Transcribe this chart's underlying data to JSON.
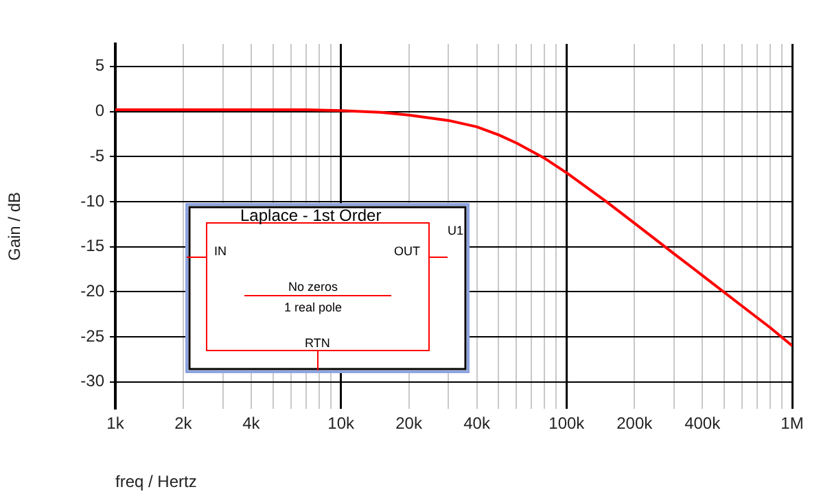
{
  "chart_data": {
    "type": "line",
    "xlabel": "freq / Hertz",
    "ylabel": "Gain / dB",
    "log": "x",
    "grid": true,
    "legend": false,
    "marker": "none",
    "line_style": "solid",
    "xlim": [
      1000,
      1000000
    ],
    "ylim": [
      -33,
      7.5
    ],
    "xticks": [
      {
        "value": 1000,
        "label": "1k"
      },
      {
        "value": 2000,
        "label": "2k"
      },
      {
        "value": 3000,
        "label": null
      },
      {
        "value": 4000,
        "label": "4k"
      },
      {
        "value": 5000,
        "label": null
      },
      {
        "value": 6000,
        "label": null
      },
      {
        "value": 7000,
        "label": null
      },
      {
        "value": 8000,
        "label": null
      },
      {
        "value": 9000,
        "label": null
      },
      {
        "value": 10000,
        "label": "10k"
      },
      {
        "value": 20000,
        "label": "20k"
      },
      {
        "value": 30000,
        "label": null
      },
      {
        "value": 40000,
        "label": "40k"
      },
      {
        "value": 50000,
        "label": null
      },
      {
        "value": 60000,
        "label": null
      },
      {
        "value": 70000,
        "label": null
      },
      {
        "value": 80000,
        "label": null
      },
      {
        "value": 90000,
        "label": null
      },
      {
        "value": 100000,
        "label": "100k"
      },
      {
        "value": 200000,
        "label": "200k"
      },
      {
        "value": 300000,
        "label": null
      },
      {
        "value": 400000,
        "label": "400k"
      },
      {
        "value": 500000,
        "label": null
      },
      {
        "value": 600000,
        "label": null
      },
      {
        "value": 700000,
        "label": null
      },
      {
        "value": 800000,
        "label": null
      },
      {
        "value": 900000,
        "label": null
      },
      {
        "value": 1000000,
        "label": "1M"
      }
    ],
    "yticks": [
      5,
      0,
      -5,
      -10,
      -15,
      -20,
      -25,
      -30
    ],
    "x": [
      1000,
      7000,
      10000,
      15000,
      20000,
      30000,
      40000,
      50000,
      60000,
      80000,
      100000,
      150000,
      200000,
      300000,
      400000,
      600000,
      800000,
      1000000
    ],
    "series": [
      {
        "color": "#ff0000",
        "values": [
          0.2,
          0.2,
          0.1,
          -0.1,
          -0.4,
          -1.0,
          -1.7,
          -2.6,
          -3.5,
          -5.2,
          -6.8,
          -10,
          -12.4,
          -15.8,
          -18.2,
          -21.6,
          -24,
          -26
        ]
      }
    ],
    "annotations": [
      "Laplace - 1st Order",
      "U1",
      "IN",
      "OUT",
      "No zeros",
      "1 real pole",
      "RTN"
    ]
  }
}
